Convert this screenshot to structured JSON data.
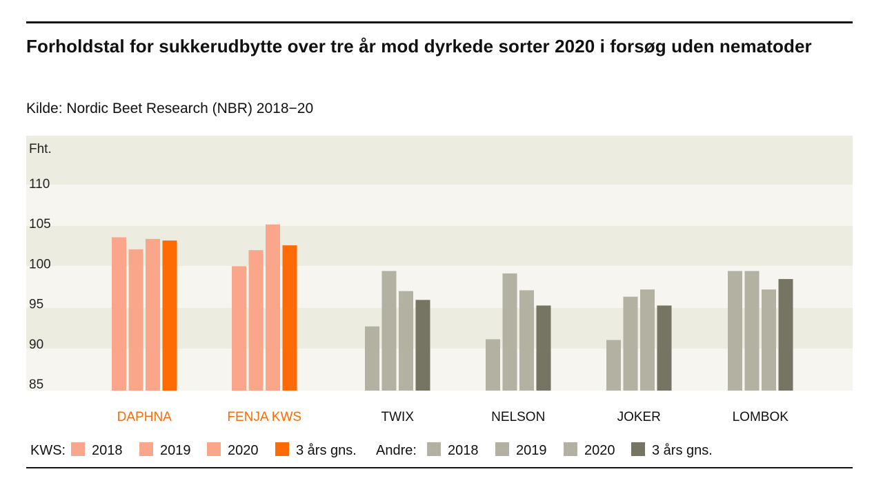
{
  "title": "Forholdstal for sukkerudbytte over tre år mod dyrkede sorter 2020 i forsøg uden nematoder",
  "subtitle": "Kilde: Nordic Beet Research (NBR) 2018−20",
  "colors": {
    "kws_year": "#f9a68b",
    "kws_avg": "#fe6b04",
    "other_year": "#b3b1a1",
    "other_avg": "#767463",
    "kws_label": "#fe6b04",
    "other_label": "#111111",
    "band_dark": "#edece1",
    "band_light": "#f6f5f0"
  },
  "legend": {
    "kws_label": "KWS:",
    "other_label": "Andre:",
    "items": [
      "2018",
      "2019",
      "2020",
      "3 års gns."
    ]
  },
  "chart_data": {
    "type": "bar",
    "ylabel": "Fht.",
    "ylim": [
      85,
      112
    ],
    "yticks": [
      85,
      90,
      95,
      100,
      105,
      110
    ],
    "categories": [
      "DAPHNA",
      "FENJA KWS",
      "TWIX",
      "NELSON",
      "JOKER",
      "LOMBOK"
    ],
    "groups": [
      "KWS",
      "KWS",
      "Andre",
      "Andre",
      "Andre",
      "Andre"
    ],
    "series": [
      {
        "name": "2018",
        "values": [
          104.1,
          100.5,
          93.0,
          91.4,
          91.3,
          99.9
        ]
      },
      {
        "name": "2019",
        "values": [
          102.6,
          102.5,
          99.9,
          99.6,
          96.7,
          99.9
        ]
      },
      {
        "name": "2020",
        "values": [
          103.9,
          105.7,
          97.4,
          97.5,
          97.6,
          97.6
        ]
      },
      {
        "name": "3 års gns.",
        "values": [
          103.7,
          103.1,
          96.3,
          95.6,
          95.6,
          98.9
        ]
      }
    ]
  }
}
